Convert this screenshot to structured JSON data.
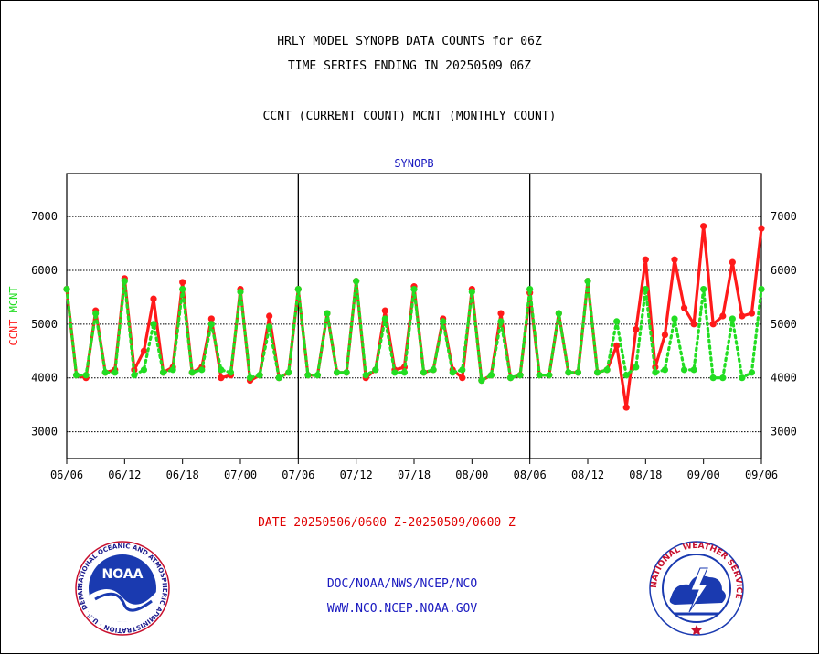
{
  "header": {
    "line1": "HRLY MODEL SYNOPB DATA COUNTS for 06Z",
    "line2": "TIME SERIES ENDING IN 20250509 06Z",
    "line3": "CCNT (CURRENT COUNT) MCNT (MONTHLY COUNT)"
  },
  "footer": {
    "date_range": "DATE 20250506/0600 Z-20250509/0600 Z",
    "org": "DOC/NOAA/NWS/NCEP/NCO",
    "url": "WWW.NCO.NCEP.NOAA.GOV"
  },
  "logos": {
    "noaa_text": "NOAA",
    "noaa_ring": "NATIONAL OCEANIC AND ATMOSPHERIC ADMINISTRATION · U.S. DEPARTMENT OF COMMERCE",
    "nws_ring": "NATIONAL WEATHER SERVICE"
  },
  "colors": {
    "ccnt": "#ff1a1a",
    "mcnt": "#22dd22",
    "axis_title": "#1a1ac0"
  },
  "chart_data": {
    "type": "line",
    "title": "SYNOPB",
    "ylabel_parts": [
      {
        "text": "CCNT",
        "color": "#ff1a1a"
      },
      {
        "text": "MCNT",
        "color": "#22dd22"
      }
    ],
    "ylim": [
      2500,
      7800
    ],
    "yticks": [
      3000,
      4000,
      5000,
      6000,
      7000
    ],
    "xlim": [
      0,
      72
    ],
    "xticks": [
      0,
      6,
      12,
      18,
      24,
      30,
      36,
      42,
      48,
      54,
      60,
      66,
      72
    ],
    "xtick_labels": [
      "06/06",
      "06/12",
      "06/18",
      "07/00",
      "07/06",
      "07/12",
      "07/18",
      "08/00",
      "08/06",
      "08/12",
      "08/18",
      "09/00",
      "09/06"
    ],
    "day_separators": [
      24,
      48
    ],
    "grid": true,
    "series": [
      {
        "name": "CCNT",
        "style": "solid",
        "color": "#ff1a1a",
        "x": [
          0,
          1,
          2,
          3,
          4,
          5,
          6,
          7,
          8,
          9,
          10,
          11,
          12,
          13,
          14,
          15,
          16,
          17,
          18,
          19,
          20,
          21,
          22,
          23,
          24,
          25,
          26,
          27,
          28,
          29,
          30,
          31,
          32,
          33,
          34,
          35,
          36,
          37,
          38,
          39,
          40,
          41,
          42,
          43,
          44,
          45,
          46,
          47,
          48,
          49,
          50,
          51,
          52,
          53,
          54,
          55,
          56,
          57,
          58,
          59,
          60,
          61,
          62,
          63,
          64,
          65,
          66,
          67,
          68,
          69,
          70,
          71,
          72
        ],
        "values": [
          5650,
          4050,
          4000,
          5250,
          4100,
          4150,
          5850,
          4150,
          4500,
          5470,
          4100,
          4200,
          5780,
          4100,
          4200,
          5100,
          4000,
          4050,
          5650,
          3950,
          4050,
          5150,
          4000,
          4100,
          5650,
          4050,
          4050,
          5200,
          4100,
          4100,
          5800,
          4000,
          4150,
          5250,
          4150,
          4200,
          5700,
          4100,
          4150,
          5100,
          4150,
          4000,
          5650,
          3950,
          4050,
          5200,
          4000,
          4050,
          5580,
          4050,
          4050,
          5200,
          4100,
          4100,
          5800,
          4100,
          4150,
          4600,
          3450,
          4900,
          6200,
          4200,
          4800,
          6200,
          5300,
          5000,
          6820,
          5000,
          5150,
          6150,
          5150,
          5200,
          6780
        ]
      },
      {
        "name": "MCNT",
        "style": "dotted",
        "color": "#22dd22",
        "x": [
          0,
          1,
          2,
          3,
          4,
          5,
          6,
          7,
          8,
          9,
          10,
          11,
          12,
          13,
          14,
          15,
          16,
          17,
          18,
          19,
          20,
          21,
          22,
          23,
          24,
          25,
          26,
          27,
          28,
          29,
          30,
          31,
          32,
          33,
          34,
          35,
          36,
          37,
          38,
          39,
          40,
          41,
          42,
          43,
          44,
          45,
          46,
          47,
          48,
          49,
          50,
          51,
          52,
          53,
          54,
          55,
          56,
          57,
          58,
          59,
          60,
          61,
          62,
          63,
          64,
          65,
          66,
          67,
          68,
          69,
          70,
          71,
          72
        ],
        "values": [
          5650,
          4050,
          4050,
          5200,
          4100,
          4100,
          5800,
          4050,
          4150,
          5000,
          4100,
          4150,
          5650,
          4100,
          4150,
          5000,
          4150,
          4100,
          5600,
          4000,
          4050,
          4950,
          4000,
          4100,
          5650,
          4050,
          4050,
          5200,
          4100,
          4100,
          5800,
          4050,
          4150,
          5100,
          4100,
          4100,
          5650,
          4100,
          4150,
          5050,
          4100,
          4150,
          5600,
          3950,
          4050,
          5050,
          4000,
          4050,
          5650,
          4050,
          4050,
          5200,
          4100,
          4100,
          5800,
          4100,
          4150,
          5050,
          4050,
          4200,
          5650,
          4100,
          4150,
          5100,
          4150,
          4150,
          5650,
          4000,
          4000,
          5100,
          4000,
          4100,
          5650
        ]
      }
    ]
  }
}
